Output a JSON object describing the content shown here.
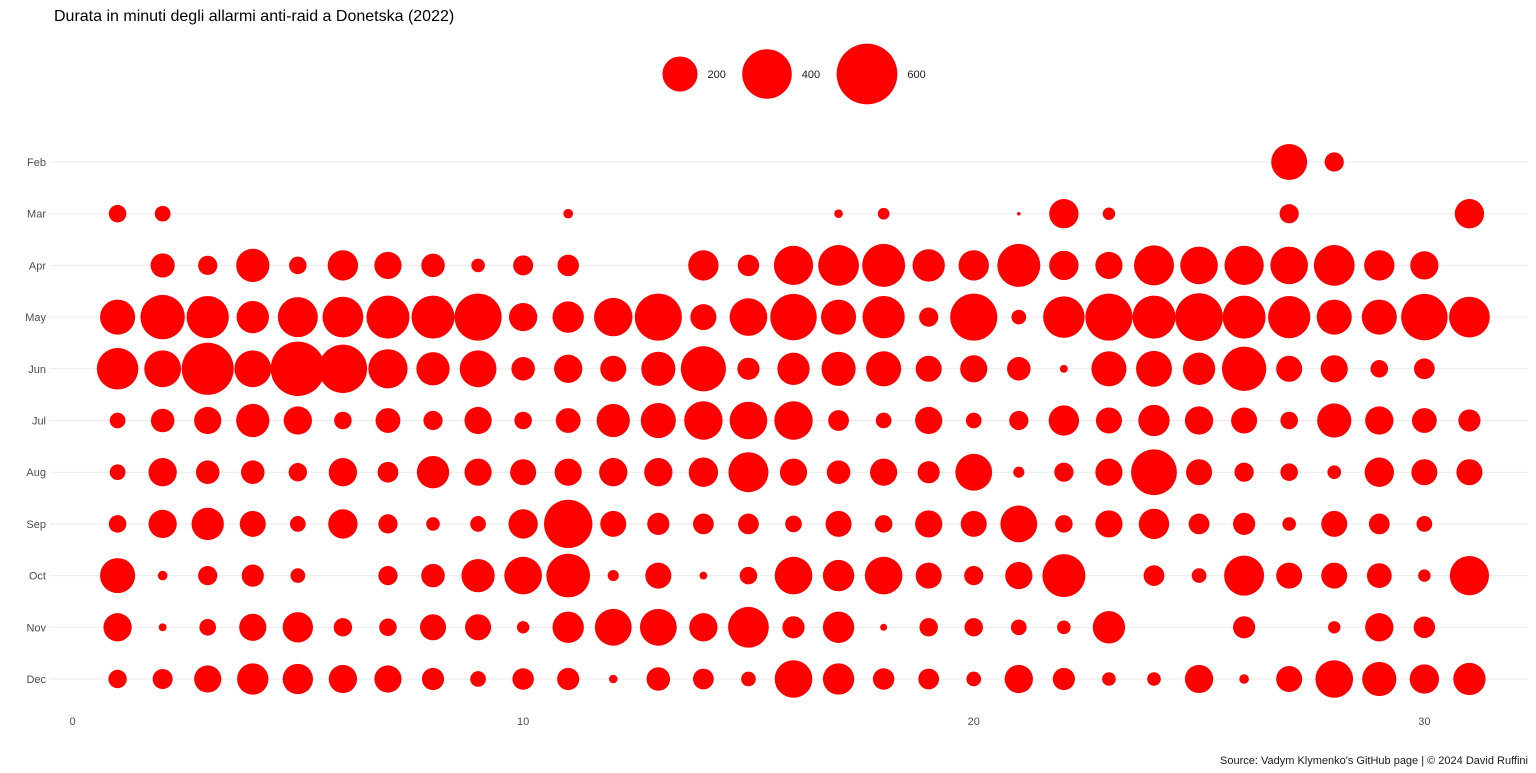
{
  "chart_data": {
    "type": "scatter",
    "title": "Durata in minuti degli allarmi anti-raid a Donetska (2022)",
    "caption": "Source: Vadym Klymenko's GitHub page | © 2024 David Ruffini",
    "xlabel": "",
    "ylabel": "",
    "xlim": [
      -0.5,
      32.3
    ],
    "x_ticks": [
      0,
      10,
      20,
      30
    ],
    "months": [
      "Feb",
      "Mar",
      "Apr",
      "May",
      "Jun",
      "Jul",
      "Aug",
      "Sep",
      "Oct",
      "Nov",
      "Dec"
    ],
    "size_variable": "Durata in minuti",
    "size_legend": [
      {
        "value": 200,
        "label": "200"
      },
      {
        "value": 400,
        "label": "400"
      },
      {
        "value": 600,
        "label": "600"
      }
    ],
    "grid": "horizontal",
    "legend_position": "top",
    "color": "#ff0000",
    "series": [
      {
        "month": "Feb",
        "points": [
          [
            27,
            210
          ],
          [
            28,
            60
          ]
        ]
      },
      {
        "month": "Mar",
        "points": [
          [
            1,
            50
          ],
          [
            2,
            40
          ],
          [
            11,
            15
          ],
          [
            17,
            12
          ],
          [
            18,
            22
          ],
          [
            21,
            2
          ],
          [
            22,
            140
          ],
          [
            23,
            25
          ],
          [
            27,
            60
          ],
          [
            31,
            140
          ]
        ]
      },
      {
        "month": "Apr",
        "points": [
          [
            2,
            95
          ],
          [
            3,
            60
          ],
          [
            4,
            180
          ],
          [
            5,
            50
          ],
          [
            6,
            150
          ],
          [
            7,
            120
          ],
          [
            8,
            90
          ],
          [
            9,
            30
          ],
          [
            10,
            65
          ],
          [
            11,
            75
          ],
          [
            14,
            150
          ],
          [
            15,
            75
          ],
          [
            16,
            250
          ],
          [
            17,
            270
          ],
          [
            18,
            300
          ],
          [
            19,
            170
          ],
          [
            20,
            150
          ],
          [
            21,
            300
          ],
          [
            22,
            140
          ],
          [
            23,
            120
          ],
          [
            24,
            260
          ],
          [
            25,
            230
          ],
          [
            26,
            250
          ],
          [
            27,
            230
          ],
          [
            28,
            270
          ],
          [
            29,
            150
          ],
          [
            30,
            130
          ]
        ]
      },
      {
        "month": "May",
        "points": [
          [
            1,
            200
          ],
          [
            2,
            320
          ],
          [
            3,
            290
          ],
          [
            4,
            170
          ],
          [
            5,
            260
          ],
          [
            6,
            270
          ],
          [
            7,
            300
          ],
          [
            8,
            300
          ],
          [
            9,
            360
          ],
          [
            10,
            130
          ],
          [
            11,
            160
          ],
          [
            12,
            240
          ],
          [
            13,
            360
          ],
          [
            14,
            110
          ],
          [
            15,
            230
          ],
          [
            16,
            350
          ],
          [
            17,
            200
          ],
          [
            18,
            290
          ],
          [
            19,
            60
          ],
          [
            20,
            360
          ],
          [
            21,
            35
          ],
          [
            22,
            280
          ],
          [
            23,
            360
          ],
          [
            24,
            300
          ],
          [
            25,
            370
          ],
          [
            26,
            300
          ],
          [
            27,
            290
          ],
          [
            28,
            200
          ],
          [
            29,
            200
          ],
          [
            30,
            350
          ],
          [
            31,
            270
          ]
        ]
      },
      {
        "month": "Jun",
        "points": [
          [
            1,
            280
          ],
          [
            2,
            220
          ],
          [
            3,
            440
          ],
          [
            4,
            220
          ],
          [
            5,
            480
          ],
          [
            6,
            380
          ],
          [
            7,
            250
          ],
          [
            8,
            180
          ],
          [
            9,
            220
          ],
          [
            10,
            90
          ],
          [
            11,
            130
          ],
          [
            12,
            110
          ],
          [
            13,
            190
          ],
          [
            14,
            330
          ],
          [
            15,
            80
          ],
          [
            16,
            170
          ],
          [
            17,
            190
          ],
          [
            18,
            200
          ],
          [
            19,
            110
          ],
          [
            20,
            120
          ],
          [
            21,
            90
          ],
          [
            22,
            10
          ],
          [
            23,
            200
          ],
          [
            24,
            210
          ],
          [
            25,
            170
          ],
          [
            26,
            320
          ],
          [
            27,
            110
          ],
          [
            28,
            120
          ],
          [
            29,
            50
          ],
          [
            30,
            70
          ]
        ]
      },
      {
        "month": "Jul",
        "points": [
          [
            1,
            40
          ],
          [
            2,
            90
          ],
          [
            3,
            120
          ],
          [
            4,
            180
          ],
          [
            5,
            130
          ],
          [
            6,
            50
          ],
          [
            7,
            100
          ],
          [
            8,
            60
          ],
          [
            9,
            120
          ],
          [
            10,
            50
          ],
          [
            11,
            100
          ],
          [
            12,
            180
          ],
          [
            13,
            200
          ],
          [
            14,
            240
          ],
          [
            15,
            230
          ],
          [
            16,
            240
          ],
          [
            17,
            70
          ],
          [
            18,
            40
          ],
          [
            19,
            120
          ],
          [
            20,
            40
          ],
          [
            21,
            60
          ],
          [
            22,
            150
          ],
          [
            23,
            110
          ],
          [
            24,
            160
          ],
          [
            25,
            130
          ],
          [
            26,
            110
          ],
          [
            27,
            50
          ],
          [
            28,
            190
          ],
          [
            29,
            130
          ],
          [
            30,
            100
          ],
          [
            31,
            80
          ]
        ]
      },
      {
        "month": "Aug",
        "points": [
          [
            1,
            40
          ],
          [
            2,
            130
          ],
          [
            3,
            90
          ],
          [
            4,
            90
          ],
          [
            5,
            55
          ],
          [
            6,
            130
          ],
          [
            7,
            70
          ],
          [
            8,
            170
          ],
          [
            9,
            120
          ],
          [
            10,
            110
          ],
          [
            11,
            120
          ],
          [
            12,
            130
          ],
          [
            13,
            130
          ],
          [
            14,
            140
          ],
          [
            15,
            260
          ],
          [
            16,
            120
          ],
          [
            17,
            90
          ],
          [
            18,
            120
          ],
          [
            19,
            80
          ],
          [
            20,
            220
          ],
          [
            21,
            20
          ],
          [
            22,
            60
          ],
          [
            23,
            120
          ],
          [
            24,
            340
          ],
          [
            25,
            110
          ],
          [
            26,
            60
          ],
          [
            27,
            50
          ],
          [
            28,
            30
          ],
          [
            29,
            140
          ],
          [
            30,
            110
          ],
          [
            31,
            110
          ]
        ]
      },
      {
        "month": "Sep",
        "points": [
          [
            1,
            50
          ],
          [
            2,
            130
          ],
          [
            3,
            170
          ],
          [
            4,
            110
          ],
          [
            5,
            40
          ],
          [
            6,
            140
          ],
          [
            7,
            60
          ],
          [
            8,
            30
          ],
          [
            9,
            40
          ],
          [
            10,
            140
          ],
          [
            11,
            380
          ],
          [
            12,
            110
          ],
          [
            13,
            80
          ],
          [
            14,
            70
          ],
          [
            15,
            70
          ],
          [
            16,
            45
          ],
          [
            17,
            110
          ],
          [
            18,
            50
          ],
          [
            19,
            120
          ],
          [
            20,
            110
          ],
          [
            21,
            220
          ],
          [
            22,
            50
          ],
          [
            23,
            120
          ],
          [
            24,
            150
          ],
          [
            25,
            70
          ],
          [
            26,
            80
          ],
          [
            27,
            30
          ],
          [
            28,
            110
          ],
          [
            29,
            70
          ],
          [
            30,
            40
          ]
        ]
      },
      {
        "month": "Oct",
        "points": [
          [
            1,
            200
          ],
          [
            2,
            15
          ],
          [
            3,
            60
          ],
          [
            4,
            80
          ],
          [
            5,
            35
          ],
          [
            7,
            60
          ],
          [
            8,
            90
          ],
          [
            9,
            180
          ],
          [
            10,
            230
          ],
          [
            11,
            310
          ],
          [
            12,
            20
          ],
          [
            13,
            110
          ],
          [
            14,
            10
          ],
          [
            15,
            50
          ],
          [
            16,
            230
          ],
          [
            17,
            160
          ],
          [
            18,
            230
          ],
          [
            19,
            110
          ],
          [
            20,
            60
          ],
          [
            21,
            120
          ],
          [
            22,
            300
          ],
          [
            24,
            70
          ],
          [
            25,
            35
          ],
          [
            26,
            260
          ],
          [
            27,
            110
          ],
          [
            28,
            110
          ],
          [
            29,
            100
          ],
          [
            30,
            25
          ],
          [
            31,
            250
          ]
        ]
      },
      {
        "month": "Nov",
        "points": [
          [
            1,
            130
          ],
          [
            2,
            10
          ],
          [
            3,
            45
          ],
          [
            4,
            120
          ],
          [
            5,
            150
          ],
          [
            6,
            55
          ],
          [
            7,
            50
          ],
          [
            8,
            110
          ],
          [
            9,
            110
          ],
          [
            10,
            25
          ],
          [
            11,
            160
          ],
          [
            12,
            220
          ],
          [
            13,
            220
          ],
          [
            14,
            130
          ],
          [
            15,
            270
          ],
          [
            16,
            80
          ],
          [
            17,
            160
          ],
          [
            18,
            8
          ],
          [
            19,
            55
          ],
          [
            20,
            55
          ],
          [
            21,
            40
          ],
          [
            22,
            30
          ],
          [
            23,
            170
          ],
          [
            26,
            80
          ],
          [
            28,
            25
          ],
          [
            29,
            130
          ],
          [
            30,
            75
          ]
        ]
      },
      {
        "month": "Dec",
        "points": [
          [
            1,
            55
          ],
          [
            2,
            65
          ],
          [
            3,
            120
          ],
          [
            4,
            160
          ],
          [
            5,
            150
          ],
          [
            6,
            130
          ],
          [
            7,
            120
          ],
          [
            8,
            80
          ],
          [
            9,
            40
          ],
          [
            10,
            75
          ],
          [
            11,
            80
          ],
          [
            12,
            12
          ],
          [
            13,
            90
          ],
          [
            14,
            70
          ],
          [
            15,
            35
          ],
          [
            16,
            230
          ],
          [
            17,
            160
          ],
          [
            18,
            75
          ],
          [
            19,
            70
          ],
          [
            20,
            35
          ],
          [
            21,
            130
          ],
          [
            22,
            80
          ],
          [
            23,
            30
          ],
          [
            24,
            30
          ],
          [
            25,
            130
          ],
          [
            26,
            15
          ],
          [
            27,
            110
          ],
          [
            28,
            230
          ],
          [
            29,
            190
          ],
          [
            30,
            140
          ],
          [
            31,
            170
          ]
        ]
      }
    ]
  }
}
